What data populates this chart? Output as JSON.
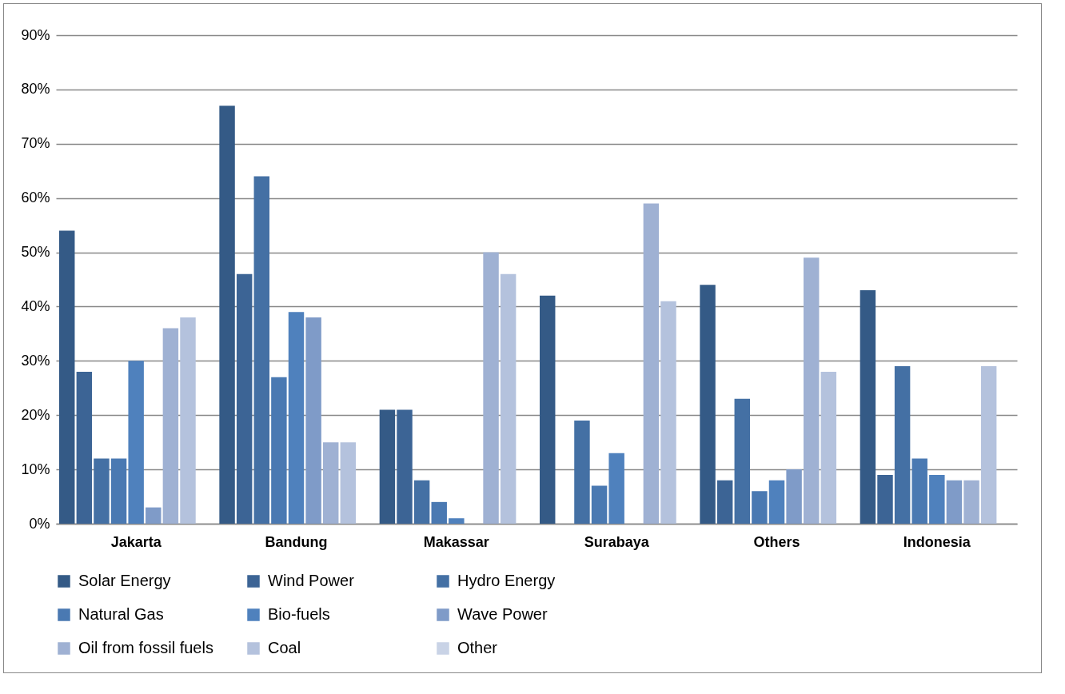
{
  "chart_data": {
    "type": "bar",
    "categories": [
      "Jakarta",
      "Bandung",
      "Makassar",
      "Surabaya",
      "Others",
      "Indonesia"
    ],
    "series": [
      {
        "name": "Solar Energy",
        "color": "#345a86",
        "values": [
          54,
          77,
          21,
          42,
          44,
          43
        ]
      },
      {
        "name": "Wind Power",
        "color": "#3c6495",
        "values": [
          28,
          46,
          21,
          0,
          8,
          9
        ]
      },
      {
        "name": "Hydro Energy",
        "color": "#4470a4",
        "values": [
          12,
          64,
          8,
          19,
          23,
          29
        ]
      },
      {
        "name": "Natural Gas",
        "color": "#4a79b2",
        "values": [
          12,
          27,
          4,
          7,
          6,
          12
        ]
      },
      {
        "name": "Bio-fuels",
        "color": "#4f81bd",
        "values": [
          30,
          39,
          1,
          13,
          8,
          9
        ]
      },
      {
        "name": "Wave Power",
        "color": "#7f9bc8",
        "values": [
          3,
          38,
          0,
          0,
          10,
          8
        ]
      },
      {
        "name": "Oil from fossil fuels",
        "color": "#9fb1d3",
        "values": [
          36,
          15,
          50,
          59,
          49,
          8
        ]
      },
      {
        "name": "Coal",
        "color": "#b4c2dd",
        "values": [
          38,
          15,
          46,
          41,
          28,
          29
        ]
      },
      {
        "name": "Other",
        "color": "#c9d3e6",
        "values": [
          0,
          0,
          0,
          0,
          0,
          0
        ]
      }
    ],
    "ylim": [
      0,
      90
    ],
    "yticks": [
      {
        "value": 0,
        "label": "0%"
      },
      {
        "value": 10,
        "label": "10%"
      },
      {
        "value": 20,
        "label": "20%"
      },
      {
        "value": 30,
        "label": "30%"
      },
      {
        "value": 40,
        "label": "40%"
      },
      {
        "value": 50,
        "label": "50%"
      },
      {
        "value": 60,
        "label": "60%"
      },
      {
        "value": 70,
        "label": "70%"
      },
      {
        "value": 80,
        "label": "80%"
      },
      {
        "value": 90,
        "label": "90%"
      }
    ],
    "grid": "y",
    "legend": "bottom"
  }
}
